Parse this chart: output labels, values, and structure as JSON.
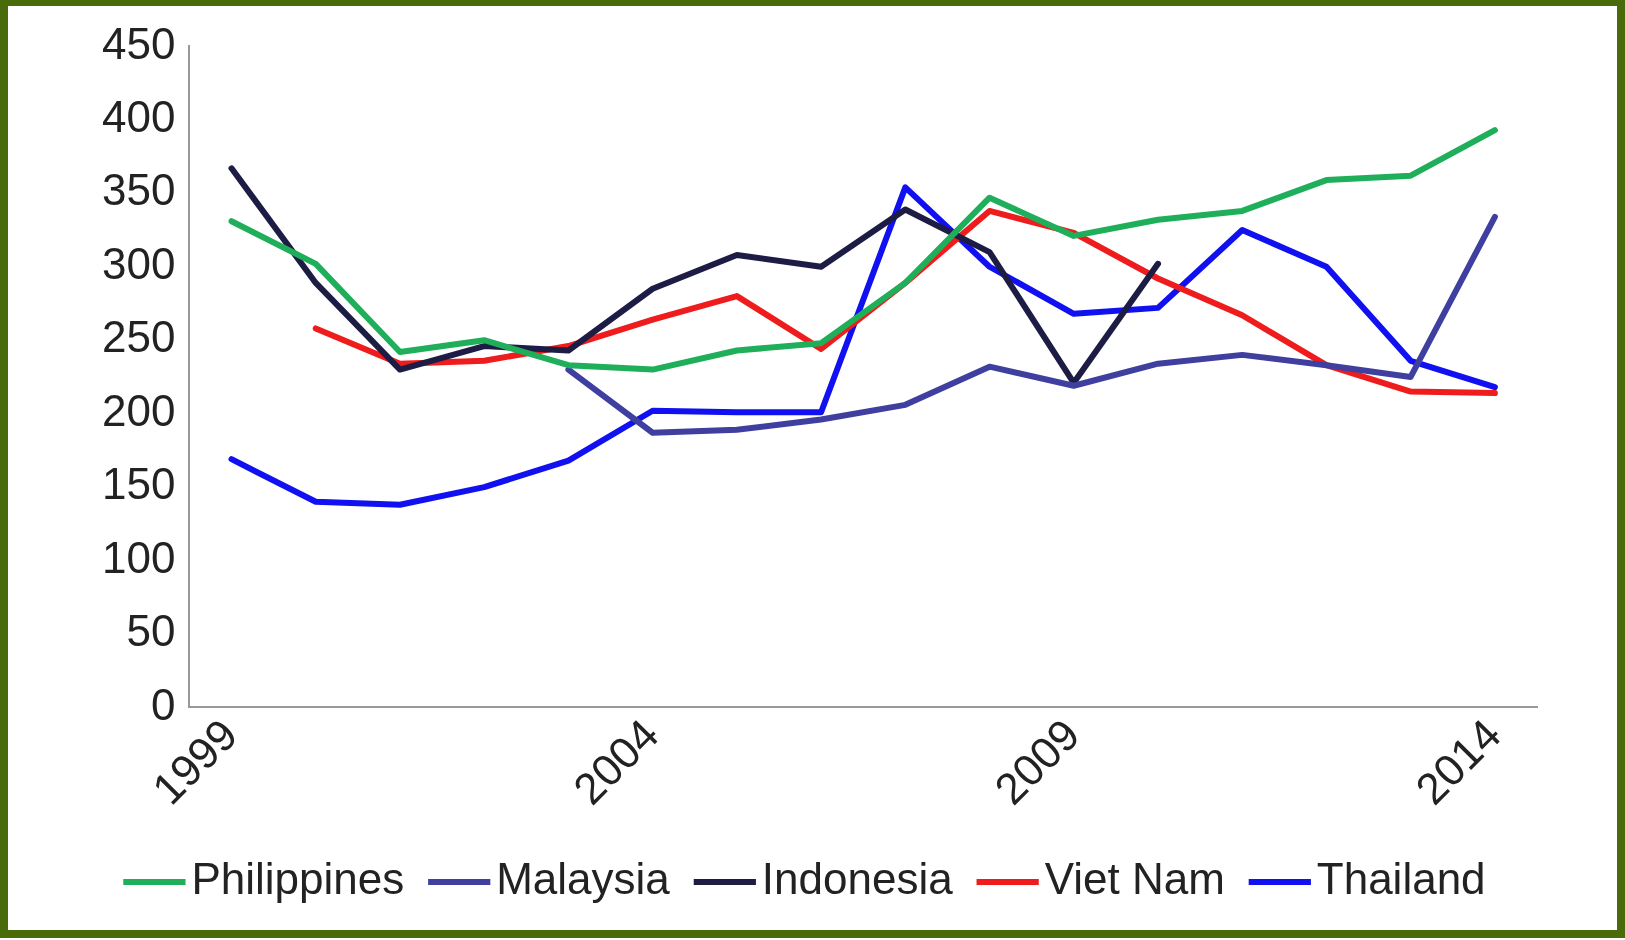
{
  "chart_data": {
    "type": "line",
    "x": [
      1999,
      2000,
      2001,
      2002,
      2003,
      2004,
      2005,
      2006,
      2007,
      2008,
      2009,
      2010,
      2011,
      2012,
      2013,
      2014
    ],
    "xlim": [
      1998.5,
      2014.5
    ],
    "xticks": [
      1999,
      2004,
      2009,
      2014
    ],
    "ylim": [
      0,
      450
    ],
    "yticks": [
      0,
      50,
      100,
      150,
      200,
      250,
      300,
      350,
      400,
      450
    ],
    "grid": false,
    "legend": "bottom",
    "marker": "none",
    "line_style": "solid",
    "series": [
      {
        "name": "Philippines",
        "color": "#1fae5a",
        "values": [
          331,
          302,
          242,
          250,
          233,
          230,
          243,
          248,
          289,
          347,
          321,
          332,
          338,
          359,
          362,
          393
        ]
      },
      {
        "name": "Malaysia",
        "color": "#3f3f9f",
        "values": [
          null,
          null,
          null,
          null,
          230,
          187,
          189,
          196,
          206,
          232,
          219,
          234,
          240,
          233,
          225,
          334
        ]
      },
      {
        "name": "Indonesia",
        "color": "#1c1c45",
        "values": [
          367,
          289,
          230,
          246,
          243,
          285,
          308,
          300,
          339,
          310,
          221,
          302,
          null,
          null,
          null,
          null
        ]
      },
      {
        "name": "Viet Nam",
        "color": "#ee1c1c",
        "values": [
          null,
          258,
          234,
          236,
          246,
          264,
          280,
          244,
          289,
          338,
          323,
          292,
          267,
          233,
          215,
          214
        ]
      },
      {
        "name": "Thailand",
        "color": "#1010f0",
        "values": [
          169,
          140,
          138,
          150,
          168,
          202,
          201,
          201,
          354,
          300,
          268,
          272,
          325,
          300,
          236,
          218
        ]
      }
    ]
  }
}
